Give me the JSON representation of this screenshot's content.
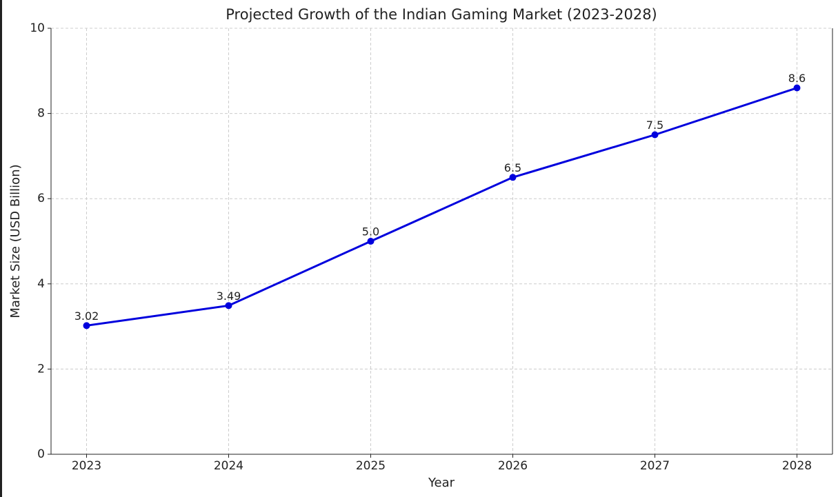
{
  "chart_data": {
    "type": "line",
    "title": "Projected Growth of the Indian Gaming Market (2023-2028)",
    "x_label": "Year",
    "y_label": "Market Size (USD Billion)",
    "x": [
      2023,
      2024,
      2025,
      2026,
      2027,
      2028
    ],
    "values": [
      3.02,
      3.49,
      5.0,
      6.5,
      7.5,
      8.6
    ],
    "value_labels": [
      "3.02",
      "3.49",
      "5.0",
      "6.5",
      "7.5",
      "8.6"
    ],
    "color": "#0000dd",
    "xlim": [
      2022.75,
      2028.25
    ],
    "xticks": [
      2023,
      2024,
      2025,
      2026,
      2027,
      2028
    ],
    "ylim": [
      0,
      10
    ],
    "yticks": [
      0,
      2,
      4,
      6,
      8,
      10
    ],
    "grid": true
  }
}
